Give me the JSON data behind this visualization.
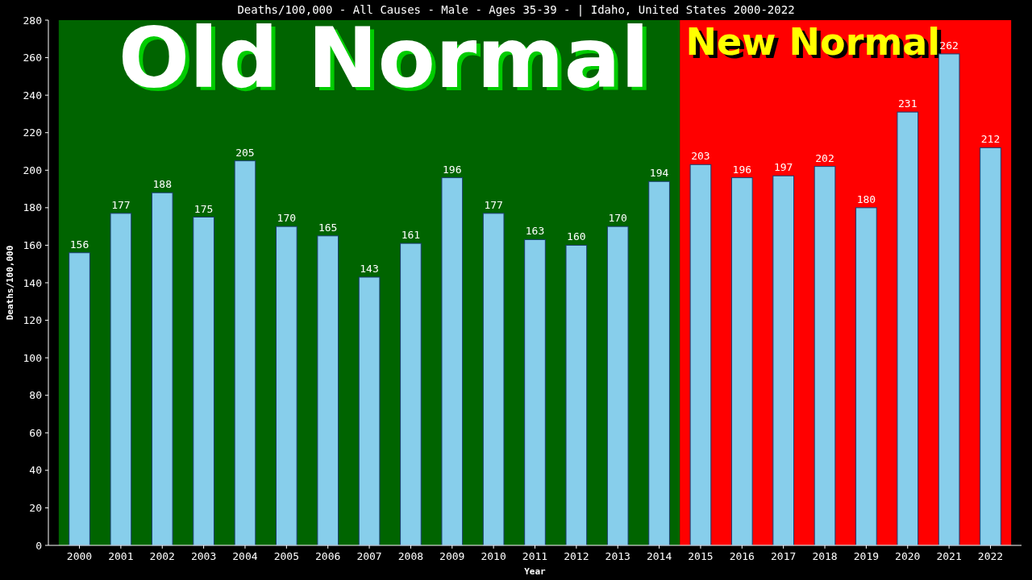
{
  "chart_data": {
    "type": "bar",
    "title": "Deaths/100,000 - All Causes - Male - Ages 35-39 -  | Idaho, United States 2000-2022",
    "xlabel": "Year",
    "ylabel": "Deaths/100,000",
    "categories": [
      "2000",
      "2001",
      "2002",
      "2003",
      "2004",
      "2005",
      "2006",
      "2007",
      "2008",
      "2009",
      "2010",
      "2011",
      "2012",
      "2013",
      "2014",
      "2015",
      "2016",
      "2017",
      "2018",
      "2019",
      "2020",
      "2021",
      "2022"
    ],
    "values": [
      156,
      177,
      188,
      175,
      205,
      170,
      165,
      143,
      161,
      196,
      177,
      163,
      160,
      170,
      194,
      203,
      196,
      197,
      202,
      180,
      231,
      262,
      212
    ],
    "color": "#87ceeb",
    "ylim": [
      0,
      280
    ],
    "yticks": [
      0,
      20,
      40,
      60,
      80,
      100,
      120,
      140,
      160,
      180,
      200,
      220,
      240,
      260,
      280
    ],
    "grid": false,
    "data_labels": true,
    "bands": [
      {
        "axis": "x",
        "from": "2000",
        "to": "2014",
        "label": "Old Normal",
        "color": "#006400"
      },
      {
        "axis": "x",
        "from": "2015",
        "to": "2022",
        "label": "New Normal",
        "color": "#ff0000"
      }
    ]
  }
}
